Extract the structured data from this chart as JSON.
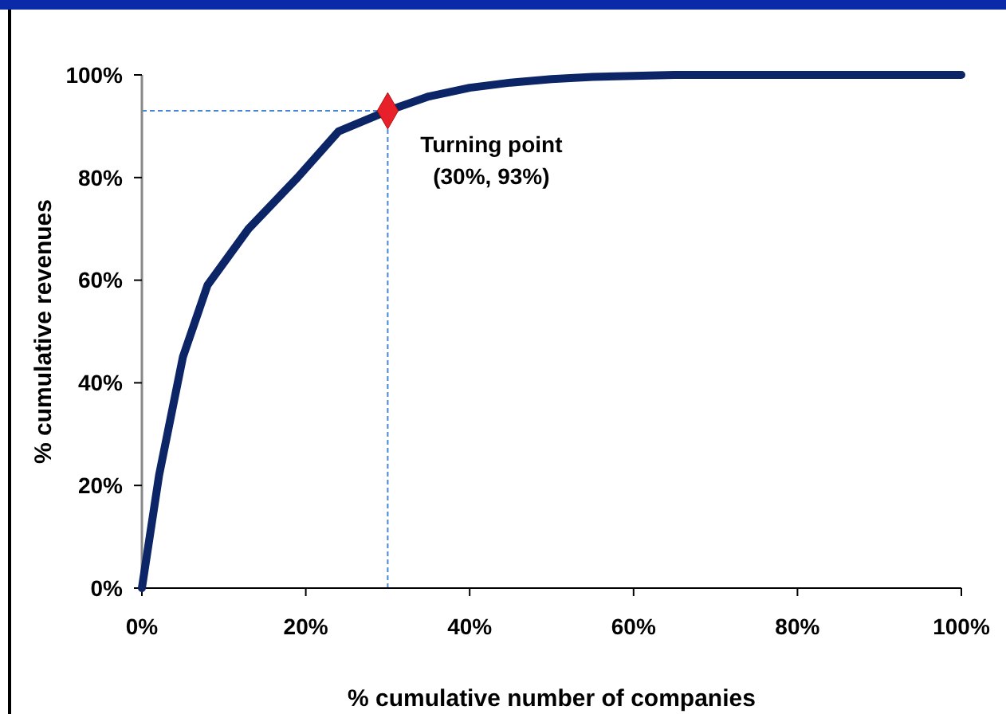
{
  "chart_data": {
    "type": "line",
    "xlabel": "% cumulative number of companies",
    "ylabel": "% cumulative revenues",
    "xlim": [
      0,
      100
    ],
    "xticks": [
      {
        "value": 0,
        "label": "0%"
      },
      {
        "value": 20,
        "label": "20%"
      },
      {
        "value": 40,
        "label": "40%"
      },
      {
        "value": 60,
        "label": "60%"
      },
      {
        "value": 80,
        "label": "80%"
      },
      {
        "value": 100,
        "label": "100%"
      }
    ],
    "ylim": [
      0,
      100
    ],
    "yticks": [
      {
        "value": 0,
        "label": "0%"
      },
      {
        "value": 20,
        "label": "20%"
      },
      {
        "value": 40,
        "label": "40%"
      },
      {
        "value": 60,
        "label": "60%"
      },
      {
        "value": 80,
        "label": "80%"
      },
      {
        "value": 100,
        "label": "100%"
      }
    ],
    "series": [
      {
        "color": "#0b2566",
        "marker": "none",
        "line_style": "solid",
        "x": [
          0,
          2.1,
          5,
          8,
          13,
          19,
          24,
          30,
          35,
          40,
          45,
          50,
          55,
          60,
          65,
          70,
          80,
          90,
          100
        ],
        "values": [
          0,
          22,
          45,
          59,
          70,
          80,
          89,
          93,
          95.8,
          97.5,
          98.5,
          99.2,
          99.6,
          99.8,
          100,
          100,
          100,
          100,
          100
        ]
      },
      {
        "type": "scatter",
        "color": "#e8202a",
        "marker": "diamond",
        "x": [
          30
        ],
        "values": [
          93
        ]
      }
    ],
    "ref_lines": [
      {
        "axis": "x",
        "value": 30,
        "color": "#4a86d8",
        "line_style": "dashed"
      },
      {
        "axis": "y",
        "value": 93,
        "color": "#4a86d8",
        "line_style": "dashed"
      }
    ],
    "annotations": [
      {
        "text": "Turning point\n(30%, 93%)",
        "x": 30,
        "y": 93
      }
    ]
  }
}
